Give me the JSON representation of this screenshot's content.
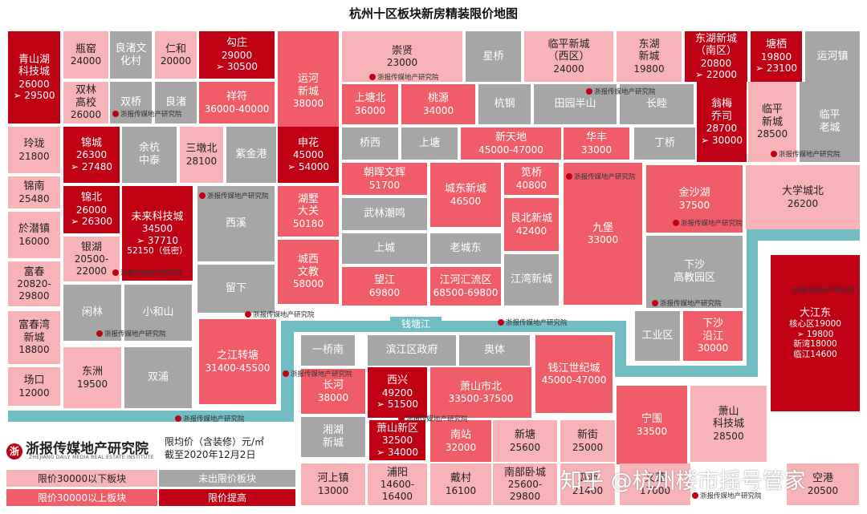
{
  "title": "杭州十区板块新房精装限价地图",
  "river_label": "钱塘江",
  "watermark_text": "浙报传媒地产研究院",
  "logo": {
    "name": "浙报传媒地产研究院",
    "sub": "ZHEJIANG DAILY MEDIA REAL ESTATE INSTITUTE"
  },
  "note": {
    "line1": "限均价（含装修）元/㎡",
    "line2": "截至2020年12月2日"
  },
  "legend": [
    {
      "label": "限价30000以下板块",
      "color": "#f7b3b8"
    },
    {
      "label": "未出限价板块",
      "color": "#a6a6a6"
    },
    {
      "label": "限价30000以上板块",
      "color": "#f05d68"
    },
    {
      "label": "限价提高",
      "color": "#c00013"
    }
  ],
  "credit": "知乎 @杭州楼市摇号管家",
  "blocks": [
    {
      "name": "青山湖\n科技城",
      "price": "26000",
      "arrow": "➢ 29500",
      "tier": "限价提高"
    },
    {
      "name": "瓶窑",
      "price": "24000",
      "tier": "限价30000以下板块"
    },
    {
      "name": "良渚文\n化村",
      "tier": "未出限价板块"
    },
    {
      "name": "仁和",
      "price": "20000",
      "tier": "限价30000以下板块"
    },
    {
      "name": "勾庄",
      "price": "29000",
      "arrow": "➢ 30500",
      "tier": "限价提高"
    },
    {
      "name": "运河\n新城",
      "price": "38000",
      "tier": "限价30000以上板块"
    },
    {
      "name": "崇贤",
      "price": "23000",
      "tier": "限价30000以下板块"
    },
    {
      "name": "星桥",
      "tier": "未出限价板块"
    },
    {
      "name": "临平新城\n（西区）",
      "price": "24000",
      "tier": "限价30000以下板块"
    },
    {
      "name": "东湖\n新城",
      "price": "19800",
      "tier": "限价30000以下板块"
    },
    {
      "name": "东湖新城\n（南区）",
      "price": "20800",
      "arrow": "➢ 22000",
      "tier": "限价提高"
    },
    {
      "name": "塘栖",
      "price": "19800",
      "arrow": "➢ 23100",
      "tier": "限价提高"
    },
    {
      "name": "运河镇",
      "tier": "未出限价板块"
    },
    {
      "name": "双林\n高校",
      "price": "26000",
      "tier": "限价30000以下板块"
    },
    {
      "name": "双桥",
      "tier": "未出限价板块"
    },
    {
      "name": "良渚",
      "tier": "未出限价板块"
    },
    {
      "name": "祥符",
      "price": "36000-40000",
      "tier": "限价30000以上板块"
    },
    {
      "name": "上塘北",
      "price": "36000",
      "tier": "限价30000以上板块"
    },
    {
      "name": "桃源",
      "price": "34000",
      "tier": "限价30000以上板块"
    },
    {
      "name": "杭钢",
      "tier": "未出限价板块"
    },
    {
      "name": "田园半山",
      "tier": "未出限价板块"
    },
    {
      "name": "长睦",
      "tier": "未出限价板块"
    },
    {
      "name": "翁梅\n乔司",
      "price": "28700",
      "arrow": "➢ 30000",
      "tier": "限价提高"
    },
    {
      "name": "临平\n新城",
      "price": "28500",
      "tier": "限价30000以下板块"
    },
    {
      "name": "临平\n老城",
      "tier": "未出限价板块"
    },
    {
      "name": "玲珑",
      "price": "21800",
      "tier": "限价30000以下板块"
    },
    {
      "name": "锦城",
      "price": "26300",
      "arrow": "➢ 27480",
      "tier": "限价提高"
    },
    {
      "name": "余杭\n中泰",
      "tier": "未出限价板块"
    },
    {
      "name": "三墩北",
      "price": "28100",
      "tier": "限价30000以下板块"
    },
    {
      "name": "紫金港",
      "tier": "未出限价板块"
    },
    {
      "name": "申花",
      "price": "45000",
      "arrow": "➢ 54000",
      "tier": "限价提高"
    },
    {
      "name": "桥西",
      "tier": "未出限价板块"
    },
    {
      "name": "上塘",
      "tier": "未出限价板块"
    },
    {
      "name": "新天地",
      "price": "45000-47000",
      "tier": "限价30000以上板块"
    },
    {
      "name": "华丰",
      "price": "33000",
      "tier": "限价30000以上板块"
    },
    {
      "name": "丁桥",
      "tier": "未出限价板块"
    },
    {
      "name": "锦南",
      "price": "25480",
      "tier": "限价30000以下板块"
    },
    {
      "name": "朝晖文辉",
      "price": "51700",
      "tier": "限价30000以上板块"
    },
    {
      "name": "城东新城",
      "price": "46500",
      "tier": "限价30000以上板块"
    },
    {
      "name": "笕桥",
      "price": "40800",
      "tier": "限价30000以上板块"
    },
    {
      "name": "九堡",
      "price": "33000",
      "tier": "限价30000以上板块"
    },
    {
      "name": "金沙湖",
      "price": "37500",
      "tier": "限价30000以上板块"
    },
    {
      "name": "大学城北",
      "price": "26200",
      "tier": "限价30000以下板块"
    },
    {
      "name": "锦北",
      "price": "26000",
      "arrow": "➢ 26300",
      "tier": "限价提高"
    },
    {
      "name": "未来科技城",
      "price": "34500",
      "arrow": "➢ 37710",
      "extra": "52150（低密）",
      "tier": "限价提高"
    },
    {
      "name": "湖墅\n大关",
      "price": "50180",
      "tier": "限价30000以上板块"
    },
    {
      "name": "武林潮鸣",
      "tier": "未出限价板块"
    },
    {
      "name": "艮北新城",
      "price": "42400",
      "tier": "限价30000以上板块"
    },
    {
      "name": "於潜镇",
      "price": "16000",
      "tier": "限价30000以下板块"
    },
    {
      "name": "西溪",
      "tier": "未出限价板块"
    },
    {
      "name": "银湖",
      "price": "20500-\n22000",
      "tier": "限价30000以下板块"
    },
    {
      "name": "上城",
      "tier": "未出限价板块"
    },
    {
      "name": "老城东",
      "tier": "未出限价板块"
    },
    {
      "name": "城西\n文教",
      "price": "58000",
      "tier": "限价30000以上板块"
    },
    {
      "name": "富春",
      "price": "20820-\n29800",
      "tier": "限价30000以下板块"
    },
    {
      "name": "下沙\n高教园区",
      "tier": "未出限价板块"
    },
    {
      "name": "望江",
      "price": "69800",
      "tier": "限价30000以上板块"
    },
    {
      "name": "江河汇流区",
      "price": "68500-69800",
      "tier": "限价30000以上板块"
    },
    {
      "name": "江湾新城",
      "tier": "未出限价板块"
    },
    {
      "name": "留下",
      "tier": "未出限价板块"
    },
    {
      "name": "闲林",
      "tier": "未出限价板块"
    },
    {
      "name": "小和山",
      "tier": "未出限价板块"
    },
    {
      "name": "大江东",
      "extra": "核心区19000\n➢ 19800\n新湾18000\n临江14600",
      "tier": "限价提高"
    },
    {
      "name": "富春湾\n新城",
      "price": "18800",
      "tier": "限价30000以下板块"
    },
    {
      "name": "工业区",
      "tier": "未出限价板块"
    },
    {
      "name": "下沙\n沿江",
      "price": "30000",
      "tier": "限价30000以上板块"
    },
    {
      "name": "一桥南",
      "tier": "未出限价板块"
    },
    {
      "name": "滨江区政府",
      "tier": "未出限价板块"
    },
    {
      "name": "奥体",
      "tier": "未出限价板块"
    },
    {
      "name": "之江转塘",
      "price": "31400-45500",
      "tier": "限价30000以上板块"
    },
    {
      "name": "钱江世纪城",
      "price": "45000-47000",
      "tier": "限价30000以上板块"
    },
    {
      "name": "东洲",
      "price": "19500",
      "tier": "限价30000以下板块"
    },
    {
      "name": "双浦",
      "tier": "未出限价板块"
    },
    {
      "name": "场口",
      "price": "12000",
      "tier": "限价30000以下板块"
    },
    {
      "name": "长河",
      "price": "38000",
      "tier": "限价30000以上板块"
    },
    {
      "name": "西兴",
      "price": "49200",
      "arrow": "➢ 51500",
      "tier": "限价提高"
    },
    {
      "name": "萧山市北",
      "price": "33500-37500",
      "tier": "限价30000以上板块"
    },
    {
      "name": "宁围",
      "price": "33500",
      "tier": "限价30000以上板块"
    },
    {
      "name": "萧山\n科技城",
      "price": "28500",
      "tier": "限价30000以下板块"
    },
    {
      "name": "湘湖\n新城",
      "tier": "未出限价板块"
    },
    {
      "name": "萧山新区",
      "price": "32500",
      "arrow": "➢ 34000",
      "tier": "限价提高"
    },
    {
      "name": "南站",
      "price": "32000",
      "tier": "限价30000以上板块"
    },
    {
      "name": "新塘",
      "price": "25600",
      "tier": "限价30000以下板块"
    },
    {
      "name": "新街",
      "price": "25000",
      "tier": "限价30000以下板块"
    },
    {
      "name": "河上镇",
      "price": "13000",
      "tier": "限价30000以下板块"
    },
    {
      "name": "浦阳",
      "price": "14600-\n16400",
      "tier": "限价30000以下板块"
    },
    {
      "name": "戴村",
      "price": "16100",
      "tier": "限价30000以下板块"
    },
    {
      "name": "南部卧城",
      "price": "25600-29800",
      "tier": "限价30000以下板块"
    },
    {
      "name": "瓜沥",
      "price": "21400",
      "tier": "限价30000以下板块"
    },
    {
      "name": "义蓬",
      "price": "17000",
      "tier": "限价30000以下板块"
    },
    {
      "name": "空港",
      "price": "20500",
      "tier": "限价30000以下板块"
    }
  ]
}
